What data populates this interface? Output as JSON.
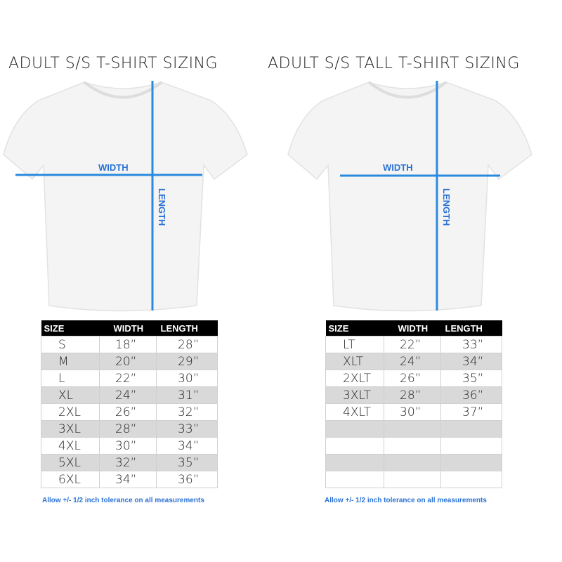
{
  "left": {
    "title": "ADULT S/S T-SHIRT SIZING",
    "width_label": "WIDTH",
    "length_label": "LENGTH",
    "headers": [
      "SIZE",
      "WIDTH",
      "LENGTH"
    ],
    "rows": [
      [
        "S",
        "18”",
        "28”"
      ],
      [
        "M",
        "20”",
        "29”"
      ],
      [
        "L",
        "22”",
        "30”"
      ],
      [
        "XL",
        "24”",
        "31”"
      ],
      [
        "2XL",
        "26”",
        "32”"
      ],
      [
        "3XL",
        "28”",
        "33”"
      ],
      [
        "4XL",
        "30”",
        "34”"
      ],
      [
        "5XL",
        "32”",
        "35”"
      ],
      [
        "6XL",
        "34”",
        "36”"
      ]
    ],
    "note": "Allow +/- 1/2 inch tolerance on all measurements"
  },
  "right": {
    "title": "ADULT S/S TALL T-SHIRT SIZING",
    "width_label": "WIDTH",
    "length_label": "LENGTH",
    "headers": [
      "SIZE",
      "WIDTH",
      "LENGTH"
    ],
    "rows": [
      [
        "LT",
        "22”",
        "33”"
      ],
      [
        "XLT",
        "24”",
        "34”"
      ],
      [
        "2XLT",
        "26”",
        "35”"
      ],
      [
        "3XLT",
        "28”",
        "36”"
      ],
      [
        "4XLT",
        "30”",
        "37”"
      ],
      [
        "",
        "",
        ""
      ],
      [
        "",
        "",
        ""
      ],
      [
        "",
        "",
        ""
      ],
      [
        "",
        "",
        ""
      ]
    ],
    "note": "Allow +/- 1/2 inch tolerance on all measurements"
  },
  "colors": {
    "measure_line": "#2a8ae0",
    "label": "#2a72d6",
    "header_bg": "#000000",
    "row_alt": "#d9d9d9"
  }
}
